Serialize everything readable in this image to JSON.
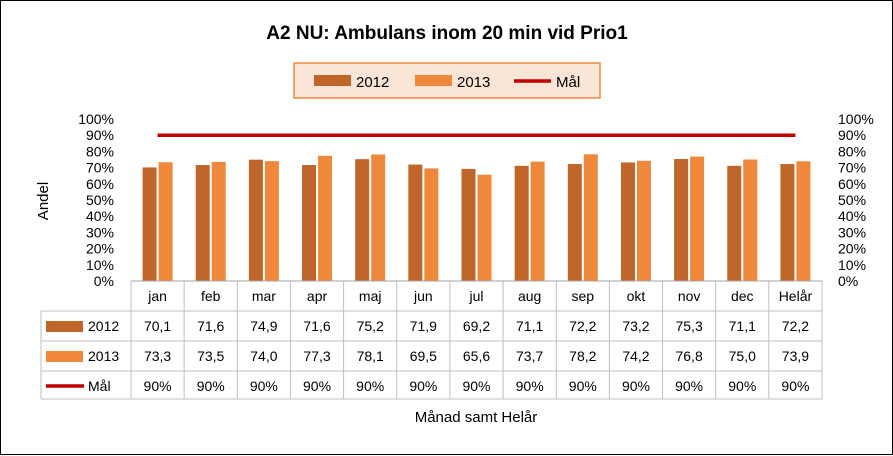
{
  "chart_data": {
    "type": "bar",
    "title": "A2 NU: Ambulans inom 20 min vid Prio1",
    "ylabel": "Andel",
    "xlabel": "Månad samt Helår",
    "ylim": [
      0,
      100
    ],
    "y_ticks": [
      "0%",
      "10%",
      "20%",
      "30%",
      "40%",
      "50%",
      "60%",
      "70%",
      "80%",
      "90%",
      "100%"
    ],
    "categories": [
      "jan",
      "feb",
      "mar",
      "apr",
      "maj",
      "jun",
      "jul",
      "aug",
      "sep",
      "okt",
      "nov",
      "dec",
      "Helår"
    ],
    "series": [
      {
        "name": "2012",
        "kind": "bar",
        "color": "#c0662a",
        "values": [
          70.1,
          71.6,
          74.9,
          71.6,
          75.2,
          71.9,
          69.2,
          71.1,
          72.2,
          73.2,
          75.3,
          71.1,
          72.2
        ],
        "labels": [
          "70,1",
          "71,6",
          "74,9",
          "71,6",
          "75,2",
          "71,9",
          "69,2",
          "71,1",
          "72,2",
          "73,2",
          "75,3",
          "71,1",
          "72,2"
        ]
      },
      {
        "name": "2013",
        "kind": "bar",
        "color": "#f0883c",
        "values": [
          73.3,
          73.5,
          74.0,
          77.3,
          78.1,
          69.5,
          65.6,
          73.7,
          78.2,
          74.2,
          76.8,
          75.0,
          73.9
        ],
        "labels": [
          "73,3",
          "73,5",
          "74,0",
          "77,3",
          "78,1",
          "69,5",
          "65,6",
          "73,7",
          "78,2",
          "74,2",
          "76,8",
          "75,0",
          "73,9"
        ]
      },
      {
        "name": "Mål",
        "kind": "line",
        "color": "#c00000",
        "values": [
          90,
          90,
          90,
          90,
          90,
          90,
          90,
          90,
          90,
          90,
          90,
          90,
          90
        ],
        "labels": [
          "90%",
          "90%",
          "90%",
          "90%",
          "90%",
          "90%",
          "90%",
          "90%",
          "90%",
          "90%",
          "90%",
          "90%",
          "90%"
        ]
      }
    ],
    "legend": {
      "placement": "top-center",
      "background": "#fbe5d6",
      "border": "#f0883c"
    },
    "secondary_y_axis": true,
    "grid": false,
    "data_table": true
  }
}
